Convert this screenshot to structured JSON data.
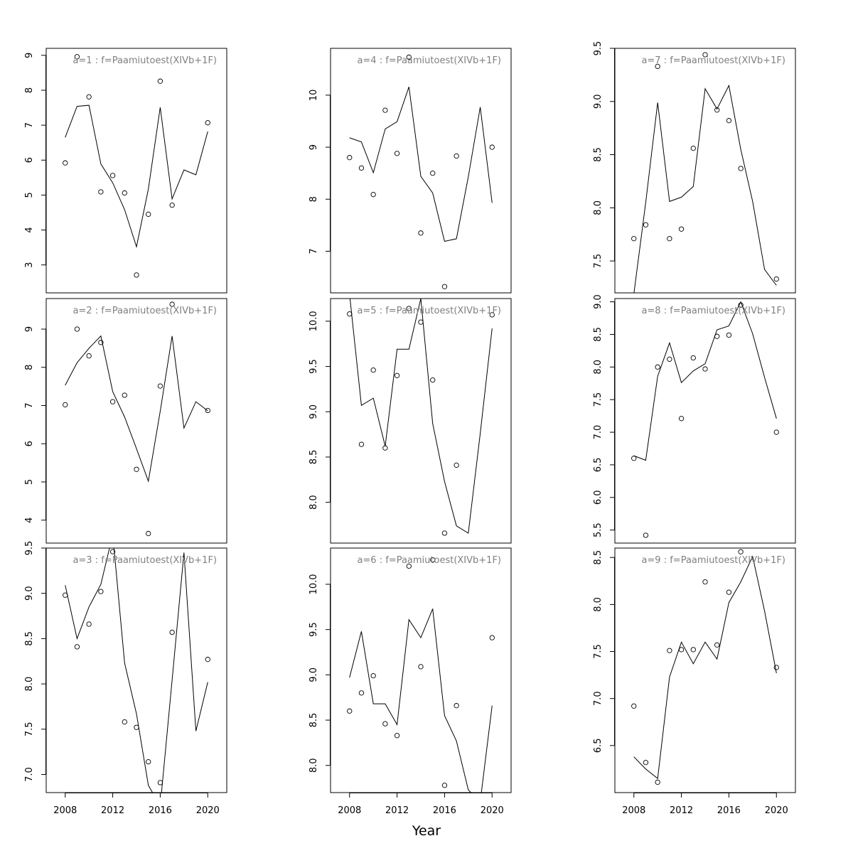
{
  "figure": {
    "xlabel": "Year",
    "layout": "3x3 column-major",
    "line_color": "#000000",
    "point_color": "#000000",
    "label_color": "#808080",
    "background": "#ffffff"
  },
  "chart_data": [
    {
      "type": "scatter-line",
      "title": "a=1 : f=Paamiutoest(XIVb+1F)",
      "ylim": [
        2.2,
        9.2
      ],
      "yticks": [
        3,
        4,
        5,
        6,
        7,
        8,
        9
      ],
      "ytick_labels": [
        "3",
        "4",
        "5",
        "6",
        "7",
        "8",
        "9"
      ],
      "xlim": [
        2006.4,
        2021.6
      ],
      "xticks": [
        2008,
        2012,
        2016,
        2020
      ],
      "observed": {
        "x": [
          2008,
          2009,
          2010,
          2011,
          2012,
          2013,
          2014,
          2015,
          2016,
          2017,
          2020
        ],
        "y": [
          5.92,
          8.96,
          7.81,
          5.09,
          5.56,
          5.06,
          2.71,
          4.45,
          8.26,
          4.71,
          7.07
        ]
      },
      "fitted": {
        "x": [
          2008,
          2009,
          2010,
          2011,
          2012,
          2013,
          2014,
          2015,
          2016,
          2017,
          2018,
          2019,
          2020
        ],
        "y": [
          6.65,
          7.54,
          7.57,
          5.89,
          5.35,
          4.58,
          3.52,
          5.17,
          7.51,
          4.89,
          5.72,
          5.58,
          6.82
        ]
      }
    },
    {
      "type": "scatter-line",
      "title": "a=2 : f=Paamiutoest(XIVb+1F)",
      "ylim": [
        3.4,
        9.8
      ],
      "yticks": [
        4,
        5,
        6,
        7,
        8,
        9
      ],
      "ytick_labels": [
        "4",
        "5",
        "6",
        "7",
        "8",
        "9"
      ],
      "xlim": [
        2006.4,
        2021.6
      ],
      "xticks": [
        2008,
        2012,
        2016,
        2020
      ],
      "observed": {
        "x": [
          2008,
          2009,
          2010,
          2011,
          2012,
          2013,
          2014,
          2015,
          2016,
          2017,
          2020
        ],
        "y": [
          7.02,
          9.0,
          8.3,
          8.65,
          7.1,
          7.27,
          5.33,
          3.65,
          7.51,
          9.65,
          6.87
        ]
      },
      "fitted": {
        "x": [
          2008,
          2009,
          2010,
          2011,
          2012,
          2013,
          2014,
          2015,
          2016,
          2017,
          2018,
          2019,
          2020
        ],
        "y": [
          7.53,
          8.12,
          8.5,
          8.82,
          7.36,
          6.7,
          5.87,
          5.02,
          6.85,
          8.82,
          6.41,
          7.1,
          6.86
        ]
      }
    },
    {
      "type": "scatter-line",
      "title": "a=3 : f=Paamiutoest(XIVb+1F)",
      "ylim": [
        6.8,
        9.5
      ],
      "yticks": [
        7.0,
        7.5,
        8.0,
        8.5,
        9.0,
        9.5
      ],
      "ytick_labels": [
        "7.0",
        "7.5",
        "8.0",
        "8.5",
        "9.0",
        "9.5"
      ],
      "xlim": [
        2006.4,
        2021.6
      ],
      "xticks": [
        2008,
        2012,
        2016,
        2020
      ],
      "observed": {
        "x": [
          2008,
          2009,
          2010,
          2011,
          2012,
          2013,
          2014,
          2015,
          2016,
          2017,
          2020
        ],
        "y": [
          8.98,
          8.41,
          8.66,
          9.02,
          9.46,
          7.58,
          7.52,
          7.14,
          6.91,
          8.57,
          8.27
        ]
      },
      "fitted": {
        "x": [
          2008,
          2009,
          2010,
          2011,
          2012,
          2013,
          2014,
          2015,
          2016,
          2017,
          2018,
          2019,
          2020
        ],
        "y": [
          9.09,
          8.5,
          8.85,
          9.1,
          9.65,
          8.23,
          7.67,
          6.88,
          6.65,
          8.04,
          9.45,
          7.48,
          8.02
        ]
      }
    },
    {
      "type": "scatter-line",
      "title": "a=4 : f=Paamiutoest(XIVb+1F)",
      "ylim": [
        6.2,
        10.9
      ],
      "yticks": [
        7,
        8,
        9,
        10
      ],
      "ytick_labels": [
        "7",
        "8",
        "9",
        "10"
      ],
      "xlim": [
        2006.4,
        2021.6
      ],
      "xticks": [
        2008,
        2012,
        2016,
        2020
      ],
      "observed": {
        "x": [
          2008,
          2009,
          2010,
          2011,
          2012,
          2013,
          2014,
          2015,
          2016,
          2017,
          2020
        ],
        "y": [
          8.8,
          8.6,
          8.09,
          9.71,
          8.88,
          10.73,
          7.35,
          8.5,
          6.32,
          8.83,
          9.0
        ]
      },
      "fitted": {
        "x": [
          2008,
          2009,
          2010,
          2011,
          2012,
          2013,
          2014,
          2015,
          2016,
          2017,
          2018,
          2019,
          2020
        ],
        "y": [
          9.18,
          9.1,
          8.51,
          9.35,
          9.49,
          10.16,
          8.44,
          8.12,
          7.19,
          7.24,
          8.43,
          9.77,
          7.93
        ]
      }
    },
    {
      "type": "scatter-line",
      "title": "a=5 : f=Paamiutoest(XIVb+1F)",
      "ylim": [
        7.55,
        10.25
      ],
      "yticks": [
        8.0,
        8.5,
        9.0,
        9.5,
        10.0
      ],
      "ytick_labels": [
        "8.0",
        "8.5",
        "9.0",
        "9.5",
        "10.0"
      ],
      "xlim": [
        2006.4,
        2021.6
      ],
      "xticks": [
        2008,
        2012,
        2016,
        2020
      ],
      "observed": {
        "x": [
          2008,
          2009,
          2010,
          2011,
          2012,
          2013,
          2014,
          2015,
          2016,
          2017,
          2020
        ],
        "y": [
          10.08,
          8.64,
          9.46,
          8.6,
          9.4,
          10.14,
          9.99,
          9.35,
          7.66,
          8.41,
          10.07
        ]
      },
      "fitted": {
        "x": [
          2008,
          2009,
          2010,
          2011,
          2012,
          2013,
          2014,
          2015,
          2016,
          2017,
          2018,
          2019,
          2020
        ],
        "y": [
          10.3,
          9.07,
          9.15,
          8.62,
          9.69,
          9.69,
          10.25,
          8.87,
          8.23,
          7.74,
          7.66,
          8.76,
          9.92
        ]
      }
    },
    {
      "type": "scatter-line",
      "title": "a=6 : f=Paamiutoest(XIVb+1F)",
      "ylim": [
        7.7,
        10.4
      ],
      "yticks": [
        8.0,
        8.5,
        9.0,
        9.5,
        10.0
      ],
      "ytick_labels": [
        "8.0",
        "8.5",
        "9.0",
        "9.5",
        "10.0"
      ],
      "xlim": [
        2006.4,
        2021.6
      ],
      "xticks": [
        2008,
        2012,
        2016,
        2020
      ],
      "observed": {
        "x": [
          2008,
          2009,
          2010,
          2011,
          2012,
          2013,
          2014,
          2015,
          2016,
          2017,
          2020
        ],
        "y": [
          8.6,
          8.8,
          8.99,
          8.46,
          8.33,
          10.2,
          9.09,
          10.27,
          7.78,
          8.66,
          9.41
        ]
      },
      "fitted": {
        "x": [
          2008,
          2009,
          2010,
          2011,
          2012,
          2013,
          2014,
          2015,
          2016,
          2017,
          2018,
          2019,
          2020
        ],
        "y": [
          8.97,
          9.48,
          8.68,
          8.68,
          8.45,
          9.61,
          9.41,
          9.73,
          8.55,
          8.27,
          7.73,
          7.6,
          8.66
        ]
      }
    },
    {
      "type": "scatter-line",
      "title": "a=7 : f=Paamiutoest(XIVb+1F)",
      "ylim": [
        7.2,
        9.5
      ],
      "yticks": [
        7.5,
        8.0,
        8.5,
        9.0,
        9.5
      ],
      "ytick_labels": [
        "7.5",
        "8.0",
        "8.5",
        "9.0",
        "9.5"
      ],
      "xlim": [
        2006.4,
        2021.6
      ],
      "xticks": [
        2008,
        2012,
        2016,
        2020
      ],
      "observed": {
        "x": [
          2008,
          2009,
          2010,
          2011,
          2012,
          2013,
          2014,
          2015,
          2016,
          2017,
          2020
        ],
        "y": [
          7.71,
          7.84,
          9.33,
          7.71,
          7.8,
          8.56,
          9.44,
          8.92,
          8.82,
          8.37,
          7.33
        ]
      },
      "fitted": {
        "x": [
          2008,
          2009,
          2010,
          2011,
          2012,
          2013,
          2014,
          2015,
          2016,
          2017,
          2018,
          2019,
          2020
        ],
        "y": [
          7.19,
          8.05,
          8.99,
          8.06,
          8.1,
          8.2,
          9.12,
          8.93,
          9.15,
          8.55,
          8.06,
          7.42,
          7.27
        ]
      }
    },
    {
      "type": "scatter-line",
      "title": "a=8 : f=Paamiutoest(XIVb+1F)",
      "ylim": [
        5.3,
        9.05
      ],
      "yticks": [
        5.5,
        6.0,
        6.5,
        7.0,
        7.5,
        8.0,
        8.5,
        9.0
      ],
      "ytick_labels": [
        "5.5",
        "6.0",
        "6.5",
        "7.0",
        "7.5",
        "8.0",
        "8.5",
        "9.0"
      ],
      "xlim": [
        2006.4,
        2021.6
      ],
      "xticks": [
        2008,
        2012,
        2016,
        2020
      ],
      "observed": {
        "x": [
          2008,
          2009,
          2010,
          2011,
          2012,
          2013,
          2014,
          2015,
          2016,
          2017,
          2020
        ],
        "y": [
          6.6,
          5.42,
          8.0,
          8.12,
          7.21,
          8.14,
          7.97,
          8.47,
          8.49,
          8.95,
          7.0
        ]
      },
      "fitted": {
        "x": [
          2008,
          2009,
          2010,
          2011,
          2012,
          2013,
          2014,
          2015,
          2016,
          2017,
          2018,
          2019,
          2020
        ],
        "y": [
          6.64,
          6.57,
          7.86,
          8.37,
          7.76,
          7.94,
          8.05,
          8.57,
          8.63,
          9.0,
          8.51,
          7.84,
          7.21
        ]
      }
    },
    {
      "type": "scatter-line",
      "title": "a=9 : f=Paamiutoest(XIVb+1F)",
      "ylim": [
        6.0,
        8.6
      ],
      "yticks": [
        6.5,
        7.0,
        7.5,
        8.0,
        8.5
      ],
      "ytick_labels": [
        "6.5",
        "7.0",
        "7.5",
        "8.0",
        "8.5"
      ],
      "xlim": [
        2006.4,
        2021.6
      ],
      "xticks": [
        2008,
        2012,
        2016,
        2020
      ],
      "observed": {
        "x": [
          2008,
          2009,
          2010,
          2011,
          2012,
          2013,
          2014,
          2015,
          2016,
          2017,
          2020
        ],
        "y": [
          6.92,
          6.32,
          6.11,
          7.51,
          7.52,
          7.52,
          8.24,
          7.57,
          8.13,
          8.56,
          7.33
        ]
      },
      "fitted": {
        "x": [
          2008,
          2009,
          2010,
          2011,
          2012,
          2013,
          2014,
          2015,
          2016,
          2017,
          2018,
          2019,
          2020
        ],
        "y": [
          6.38,
          6.25,
          6.15,
          7.23,
          7.6,
          7.37,
          7.6,
          7.42,
          8.02,
          8.24,
          8.51,
          7.93,
          7.27
        ]
      }
    }
  ]
}
